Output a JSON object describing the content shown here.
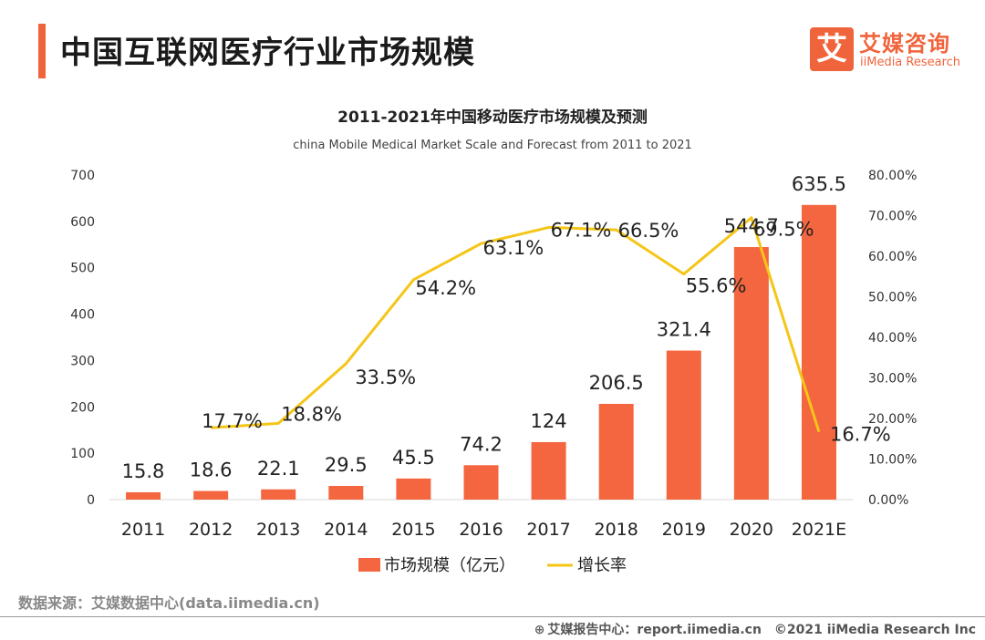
{
  "header": {
    "title": "中国互联网医疗行业市场规模",
    "logo_icon": "艾",
    "logo_cn": "艾媒咨询",
    "logo_en": "iiMedia Research"
  },
  "chart_data": {
    "type": "bar",
    "title": "2011-2021年中国移动医疗市场规模及预测",
    "subtitle": "china Mobile Medical Market Scale and Forecast from 2011 to 2021",
    "categories": [
      "2011",
      "2012",
      "2013",
      "2014",
      "2015",
      "2016",
      "2017",
      "2018",
      "2019",
      "2020",
      "2021E"
    ],
    "series": [
      {
        "name": "市场规模（亿元）",
        "type": "bar",
        "axis": "left",
        "color": "#f3663f",
        "values": [
          15.8,
          18.6,
          22.1,
          29.5,
          45.5,
          74.2,
          124,
          206.5,
          321.4,
          544.7,
          635.5
        ],
        "labels": [
          "15.8",
          "18.6",
          "22.1",
          "29.5",
          "45.5",
          "74.2",
          "124",
          "206.5",
          "321.4",
          "544.7",
          "635.5"
        ]
      },
      {
        "name": "增长率",
        "type": "line",
        "axis": "right",
        "color": "#f5c518",
        "values": [
          null,
          17.7,
          18.8,
          33.5,
          54.2,
          63.1,
          67.1,
          66.5,
          55.6,
          69.5,
          16.7
        ],
        "labels": [
          null,
          "17.7%",
          "18.8%",
          "33.5%",
          "54.2%",
          "63.1%",
          "67.1%",
          "66.5%",
          "55.6%",
          "69.5%",
          "16.7%"
        ]
      }
    ],
    "ylim": [
      0,
      700
    ],
    "y_ticks": [
      "0",
      "100",
      "200",
      "300",
      "400",
      "500",
      "600",
      "700"
    ],
    "y2lim": [
      0,
      80
    ],
    "y2_ticks": [
      "0.00%",
      "10.00%",
      "20.00%",
      "30.00%",
      "40.00%",
      "50.00%",
      "60.00%",
      "70.00%",
      "80.00%"
    ],
    "grid": false,
    "legend_position": "bottom"
  },
  "footer": {
    "source": "数据来源：艾媒数据中心(data.iimedia.cn)",
    "globe_icon": "⊕",
    "report_site": "艾媒报告中心：report.iimedia.cn",
    "copyright": "©2021  iiMedia Research  Inc"
  }
}
